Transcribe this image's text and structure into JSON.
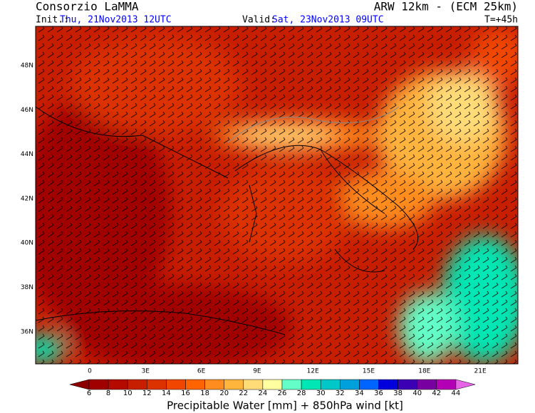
{
  "header": {
    "org": "Consorzio LaMMA",
    "model": "ARW 12km - (ECM 25km)",
    "init_label": "Init.:",
    "init": "Thu, 21Nov2013 12UTC",
    "valid_label": "Valid:",
    "valid": "Sat, 23Nov2013 09UTC",
    "lead": "T=+45h"
  },
  "map": {
    "lat_labels": [
      "48N",
      "46N",
      "44N",
      "42N",
      "40N",
      "38N",
      "36N"
    ],
    "lon_labels": [
      "0",
      "3E",
      "6E",
      "9E",
      "12E",
      "15E",
      "18E",
      "21E"
    ]
  },
  "colorbar": {
    "title": "Precipitable Water [mm] + 850hPa wind [kt]",
    "ticks": [
      6,
      8,
      10,
      12,
      14,
      16,
      18,
      20,
      22,
      24,
      26,
      28,
      30,
      32,
      34,
      36,
      38,
      40,
      42,
      44
    ],
    "colors": [
      "#8c0000",
      "#a00000",
      "#b40a00",
      "#c81e00",
      "#dc3200",
      "#f04600",
      "#ff6400",
      "#ff8c1e",
      "#ffb43c",
      "#ffdc78",
      "#ffffa0",
      "#64ffc8",
      "#00e6b4",
      "#00c8c8",
      "#00a0dc",
      "#0064ff",
      "#0000dc",
      "#3c00b4",
      "#7800a0",
      "#b400b4",
      "#e664e6"
    ]
  }
}
